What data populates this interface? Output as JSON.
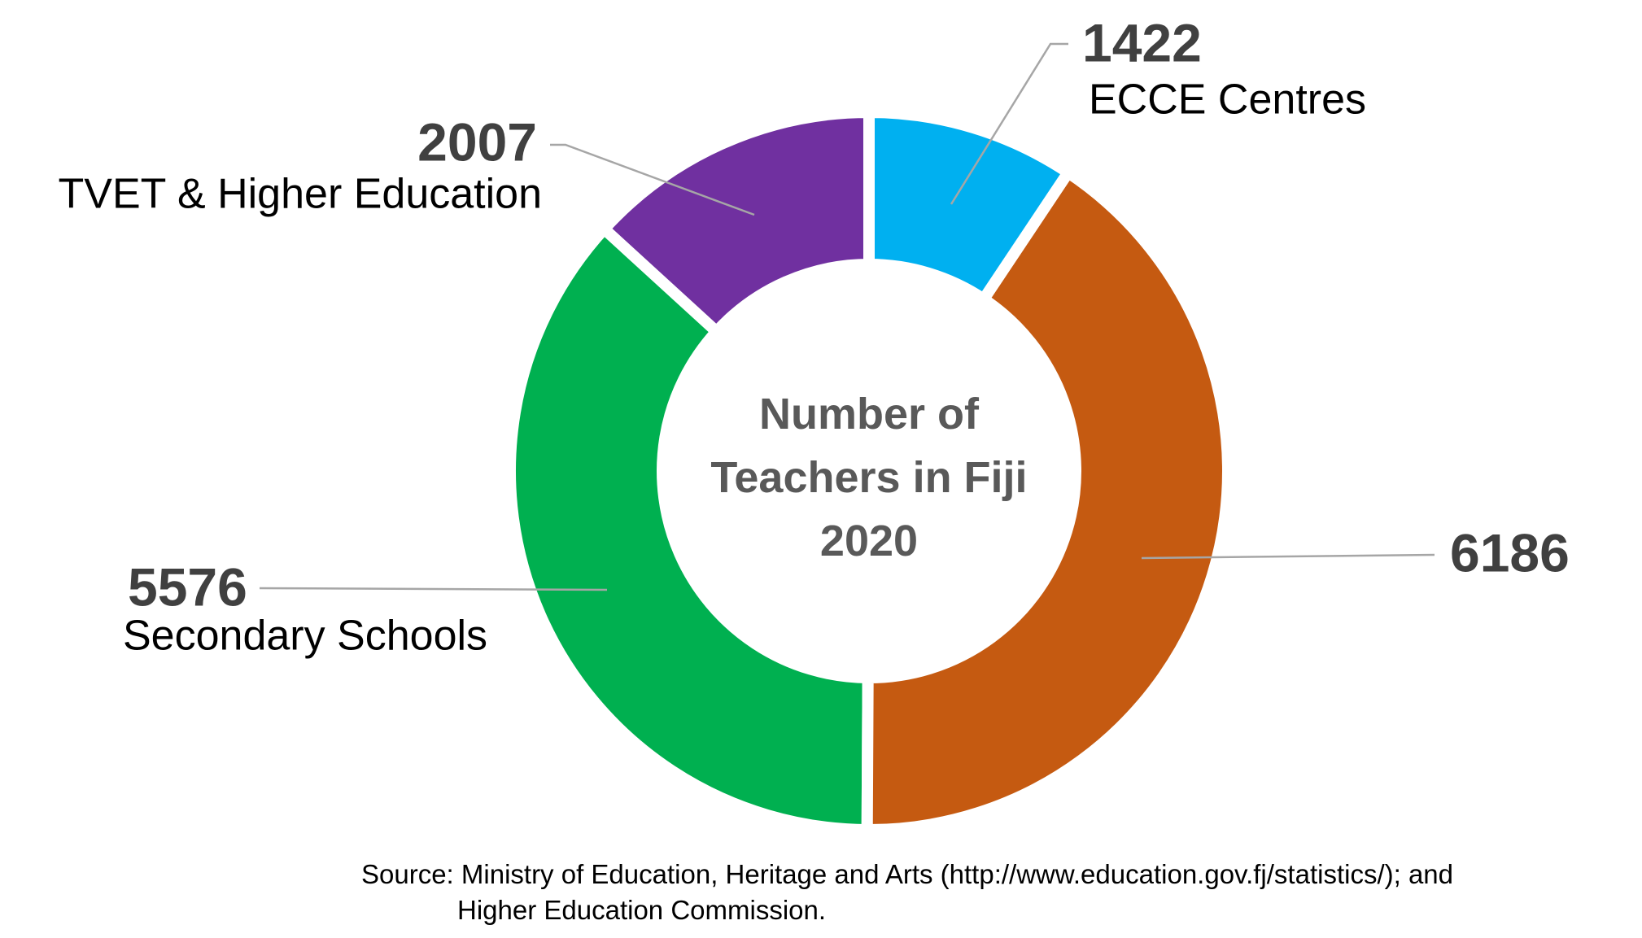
{
  "chart_data": {
    "type": "donut",
    "title": "Number of Teachers in Fiji 2020",
    "categories": [
      "ECCE Centres",
      null,
      "Secondary Schools",
      "TVET & Higher Education"
    ],
    "values": [
      1422,
      6186,
      5576,
      2007
    ],
    "colors": [
      "#00b0f0",
      "#c55a11",
      "#00b050",
      "#7030a0"
    ],
    "source": [
      "Source: Ministry of Education, Heritage and Arts (http://www.education.gov.fj/statistics/); and",
      "Higher Education Commission."
    ]
  }
}
